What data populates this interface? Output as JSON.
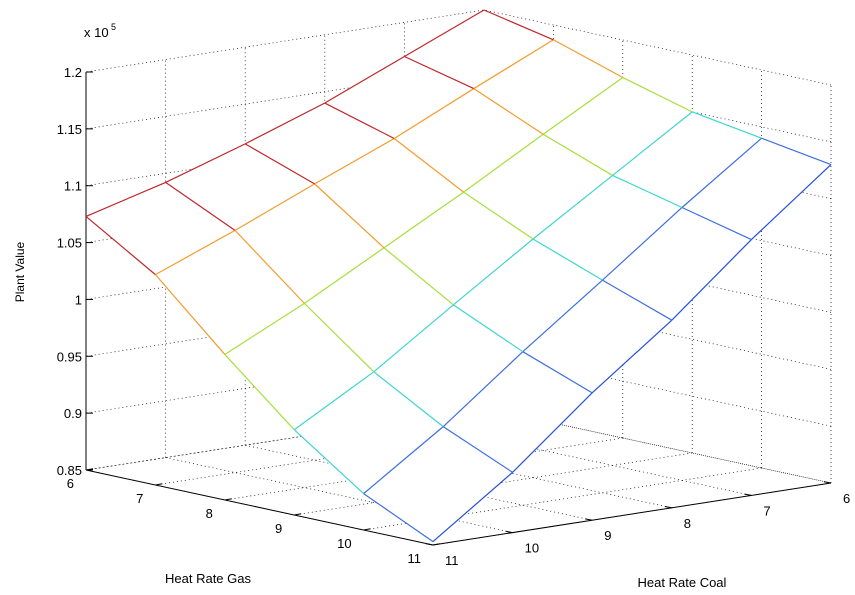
{
  "chart_data": {
    "type": "surface-mesh",
    "title": "",
    "xlabel": "Heat Rate Coal",
    "ylabel": "Heat Rate Gas",
    "zlabel": "Plant Value",
    "z_multiplier_label": "x 10",
    "z_multiplier_exponent": "5",
    "xlim": [
      6,
      11
    ],
    "ylim": [
      6,
      11
    ],
    "zlim": [
      0.85,
      1.2
    ],
    "x_ticks": [
      "6",
      "7",
      "8",
      "9",
      "10",
      "11"
    ],
    "y_ticks": [
      "6",
      "7",
      "8",
      "9",
      "10",
      "11"
    ],
    "z_ticks": [
      "0.85",
      "0.9",
      "0.95",
      "1",
      "1.05",
      "1.1",
      "1.15",
      "1.2"
    ],
    "grid": true,
    "colormap": "jet",
    "z_unit": "x 10^5",
    "x": [
      6,
      7,
      8,
      9,
      10,
      11
    ],
    "y": [
      6,
      7,
      8,
      9,
      10,
      11
    ],
    "z": [
      [
        1.2,
        1.17,
        1.14,
        1.115,
        1.092,
        1.073
      ],
      [
        1.187,
        1.155,
        1.122,
        1.093,
        1.063,
        1.035
      ],
      [
        1.167,
        1.128,
        1.088,
        1.05,
        1.012,
        0.978
      ],
      [
        1.15,
        1.105,
        1.06,
        1.013,
        0.965,
        0.925
      ],
      [
        1.14,
        1.09,
        1.037,
        0.985,
        0.93,
        0.882
      ],
      [
        1.13,
        1.075,
        1.015,
        0.962,
        0.903,
        0.853
      ]
    ],
    "row_colors": [
      "#c0262a",
      "#f39c2e",
      "#a6df3a",
      "#3cd5d1",
      "#3d6fe0",
      "#2450d8"
    ]
  }
}
